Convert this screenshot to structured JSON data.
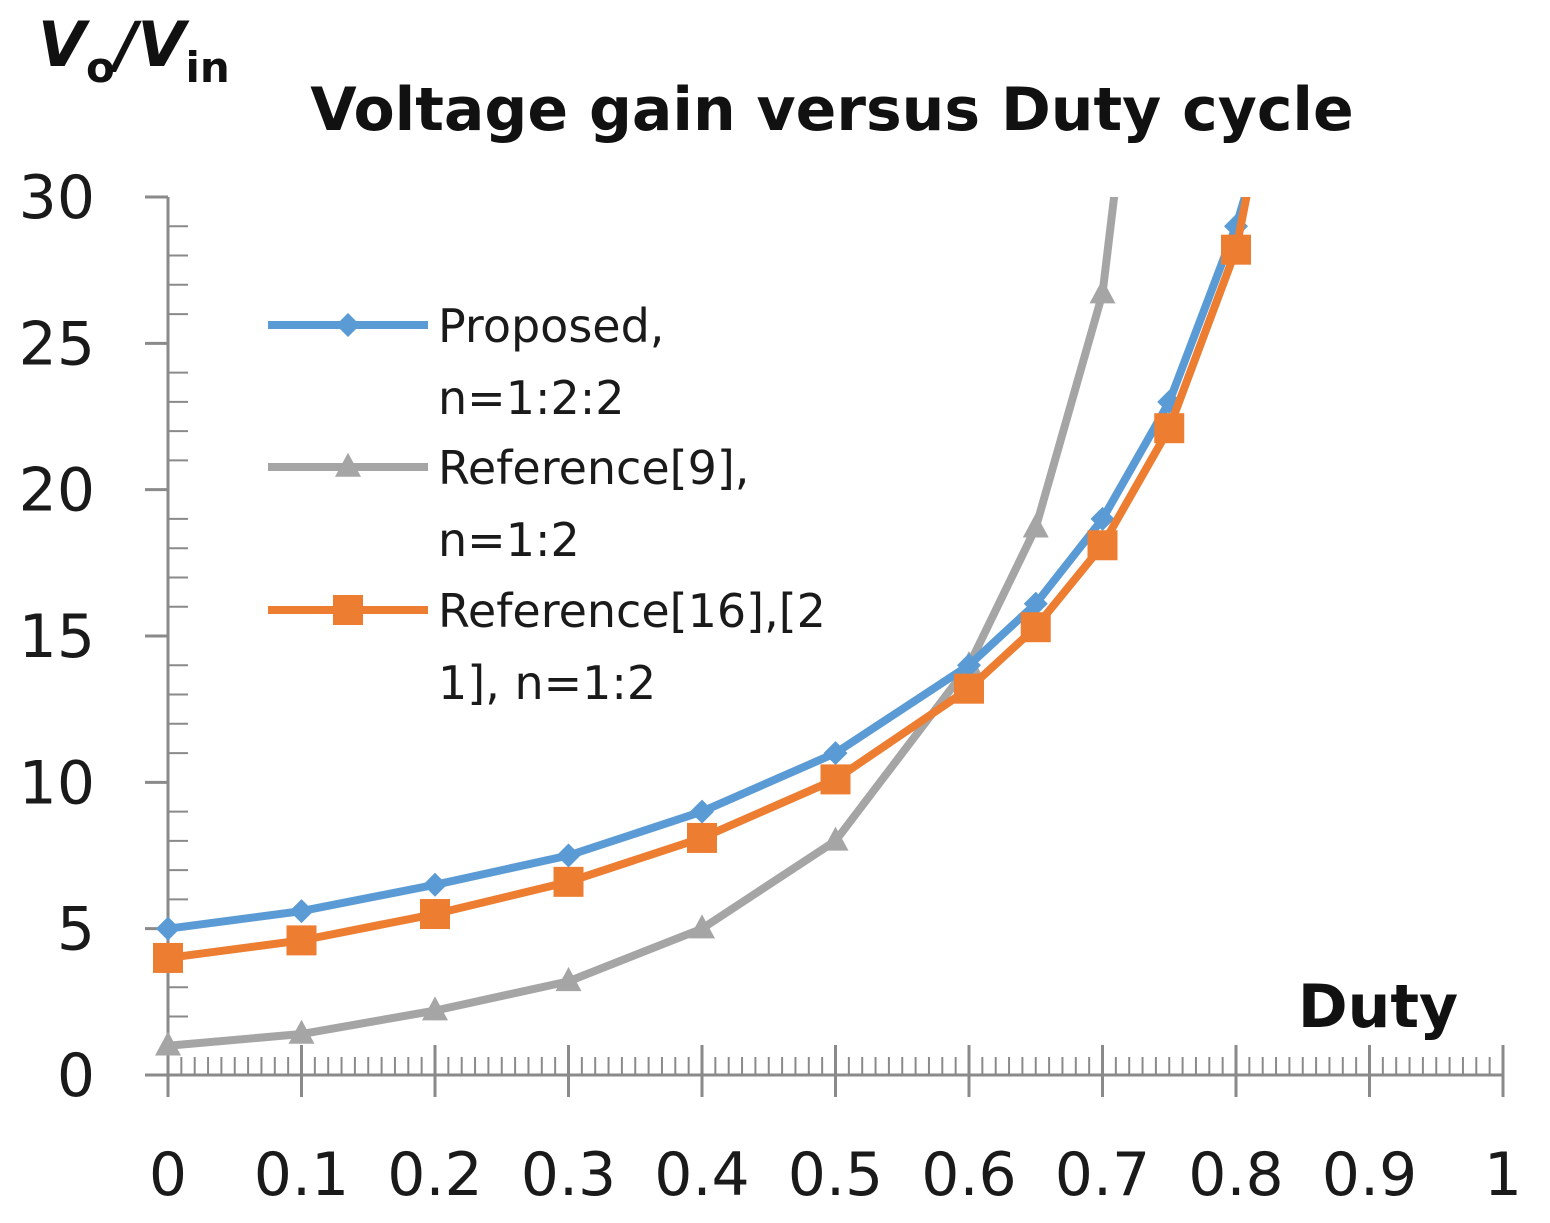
{
  "chart_data": {
    "type": "line",
    "title": "Voltage gain versus Duty cycle",
    "ylabel": {
      "main": "V",
      "sub1": "o",
      "slash": "/",
      "main2": "V",
      "sub2": "in"
    },
    "xlabel": "Duty",
    "xlim": [
      0,
      1
    ],
    "ylim": [
      0,
      30
    ],
    "x_ticks": [
      "0",
      "0.1",
      "0.2",
      "0.3",
      "0.4",
      "0.5",
      "0.6",
      "0.7",
      "0.8",
      "0.9",
      "1"
    ],
    "x_tick_values": [
      0,
      0.1,
      0.2,
      0.3,
      0.4,
      0.5,
      0.6,
      0.7,
      0.8,
      0.9,
      1
    ],
    "y_ticks": [
      "0",
      "5",
      "10",
      "15",
      "20",
      "25",
      "30"
    ],
    "y_tick_values": [
      0,
      5,
      10,
      15,
      20,
      25,
      30
    ],
    "legend_position": "upper-left inside plot",
    "series": [
      {
        "name_lines": [
          "Proposed,",
          "n=1:2:2"
        ],
        "color": "#5b9bd5",
        "marker": "diamond",
        "x": [
          0,
          0.1,
          0.2,
          0.3,
          0.4,
          0.5,
          0.6,
          0.65,
          0.7,
          0.75,
          0.8,
          0.81
        ],
        "y": [
          5.0,
          5.6,
          6.5,
          7.5,
          9.0,
          11.0,
          14.0,
          16.1,
          19.0,
          23.0,
          29.0,
          30.5
        ]
      },
      {
        "name_lines": [
          "Reference[9],",
          "n=1:2"
        ],
        "color": "#a5a5a5",
        "marker": "triangle",
        "x": [
          0,
          0.1,
          0.2,
          0.3,
          0.4,
          0.5,
          0.6,
          0.65,
          0.7,
          0.71
        ],
        "y": [
          1.0,
          1.4,
          2.2,
          3.2,
          5.0,
          8.0,
          14.0,
          18.7,
          26.7,
          30.5
        ]
      },
      {
        "name_lines": [
          "Reference[16],[2",
          "1], n=1:2"
        ],
        "color": "#ed7d31",
        "marker": "square",
        "x": [
          0,
          0.1,
          0.2,
          0.3,
          0.4,
          0.5,
          0.6,
          0.65,
          0.7,
          0.75,
          0.8,
          0.81
        ],
        "y": [
          4.0,
          4.6,
          5.5,
          6.6,
          8.1,
          10.1,
          13.2,
          15.3,
          18.1,
          22.1,
          28.2,
          30.5
        ]
      }
    ]
  }
}
